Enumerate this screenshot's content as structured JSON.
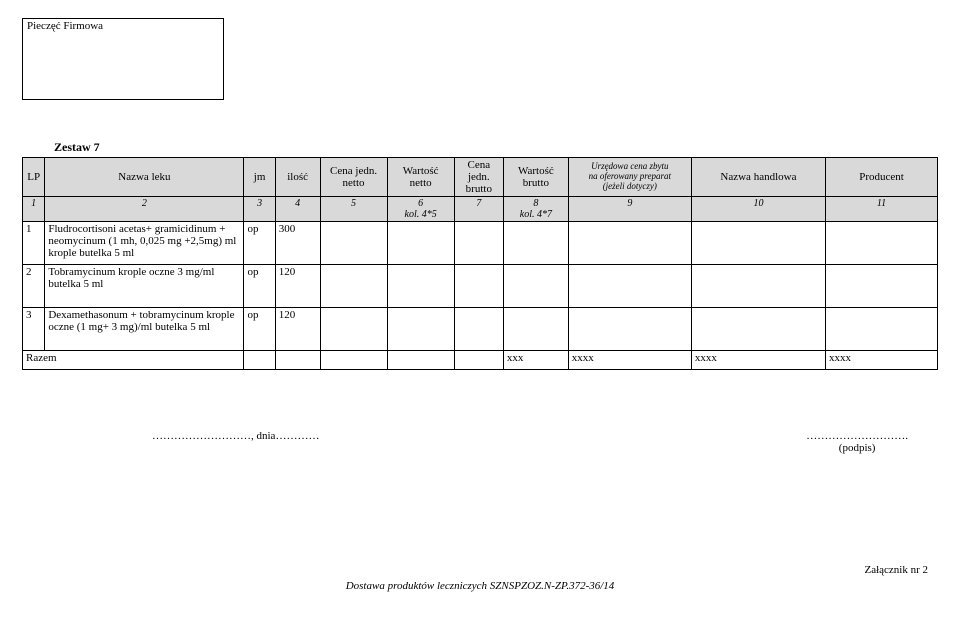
{
  "stamp_label": "Pieczęć Firmowa",
  "set_title": "Zestaw 7",
  "headers": {
    "lp": "LP",
    "name": "Nazwa leku",
    "jm": "jm",
    "qty": "ilość",
    "cn": "Cena jedn. netto",
    "wn": "Wartość netto",
    "cb": "Cena jedn. brutto",
    "wb": "Wartość brutto",
    "of_l1": "Urzędowa cena zbytu",
    "of_l2": "na oferowany preparat",
    "of_l3": "(jeżeli dotyczy)",
    "hn": "Nazwa handlowa",
    "prod": "Producent"
  },
  "nums": {
    "c1": "1",
    "c2": "2",
    "c3": "3",
    "c4": "4",
    "c5": "5",
    "c6": "6\nkol. 4*5",
    "c7": "7",
    "c8": "8\nkol. 4*7",
    "c9": "9",
    "c10": "10",
    "c11": "11"
  },
  "rows": [
    {
      "lp": "1",
      "name": "Fludrocortisoni acetas+ gramicidinum + neomycinum (1 mh, 0,025 mg +2,5mg) ml krople butelka 5 ml",
      "jm": "op",
      "qty": "300"
    },
    {
      "lp": "2",
      "name": "Tobramycinum krople oczne 3 mg/ml butelka 5 ml",
      "jm": "op",
      "qty": "120"
    },
    {
      "lp": "3",
      "name": "Dexamethasonum + tobramycinum krople oczne (1 mg+ 3 mg)/ml butelka 5 ml",
      "jm": "op",
      "qty": "120"
    }
  ],
  "sum": {
    "label": "Razem",
    "wb": "xxx",
    "of": "xxxx",
    "hn": "xxxx",
    "prod": "xxxx"
  },
  "sig": {
    "left": "………………………, dnia…………",
    "right_dots": "……………………….",
    "right_label": "(podpis)"
  },
  "footer_right": "Załącznik nr 2",
  "footer_center": "Dostawa produktów leczniczych SZNSPZOZ.N-ZP.372-36/14"
}
